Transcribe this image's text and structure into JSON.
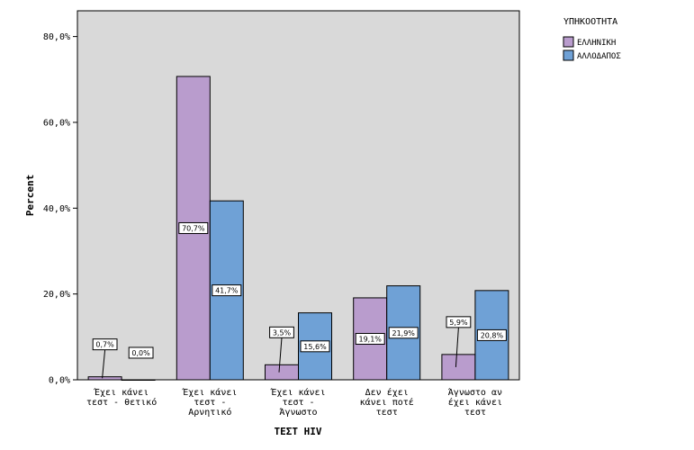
{
  "chart_data": {
    "type": "bar",
    "title": "",
    "xlabel": "ΤΕΣΤ HIV",
    "ylabel": "Percent",
    "ylim": [
      0,
      86
    ],
    "yticks": [
      "0,0%",
      "20,0%",
      "40,0%",
      "60,0%",
      "80,0%"
    ],
    "ytick_values": [
      0,
      20,
      40,
      60,
      80
    ],
    "grid": false,
    "legend": {
      "title": "ΥΠΗΚΟΟΤΗΤΑ",
      "placement": "top-right"
    },
    "categories": [
      [
        "Έχει κάνει",
        "τεστ - θετικό"
      ],
      [
        "Έχει κάνει",
        "τεστ -",
        "Αρνητικό"
      ],
      [
        "Έχει κάνει",
        "τεστ -",
        "Άγνωστο"
      ],
      [
        "Δεν έχει",
        "κάνει ποτέ",
        "τεστ"
      ],
      [
        "Άγνωστο αν",
        "έχει κάνει",
        "τεστ"
      ]
    ],
    "series": [
      {
        "name": "ΕΛΛΗΝΙΚΗ",
        "color": "#b99ccd",
        "values": [
          0.7,
          70.7,
          3.5,
          19.1,
          5.9
        ],
        "labels": [
          "0,7%",
          "70,7%",
          "3,5%",
          "19,1%",
          "5,9%"
        ]
      },
      {
        "name": "ΑΛΛΟΔΑΠΟΣ",
        "color": "#6fa1d6",
        "values": [
          0.0,
          41.7,
          15.6,
          21.9,
          20.8
        ],
        "labels": [
          "0,0%",
          "41,7%",
          "15,6%",
          "21,9%",
          "20,8%"
        ]
      }
    ]
  },
  "colors": {
    "plot_background": "#d9d9d9",
    "page_background": "#ffffff"
  }
}
